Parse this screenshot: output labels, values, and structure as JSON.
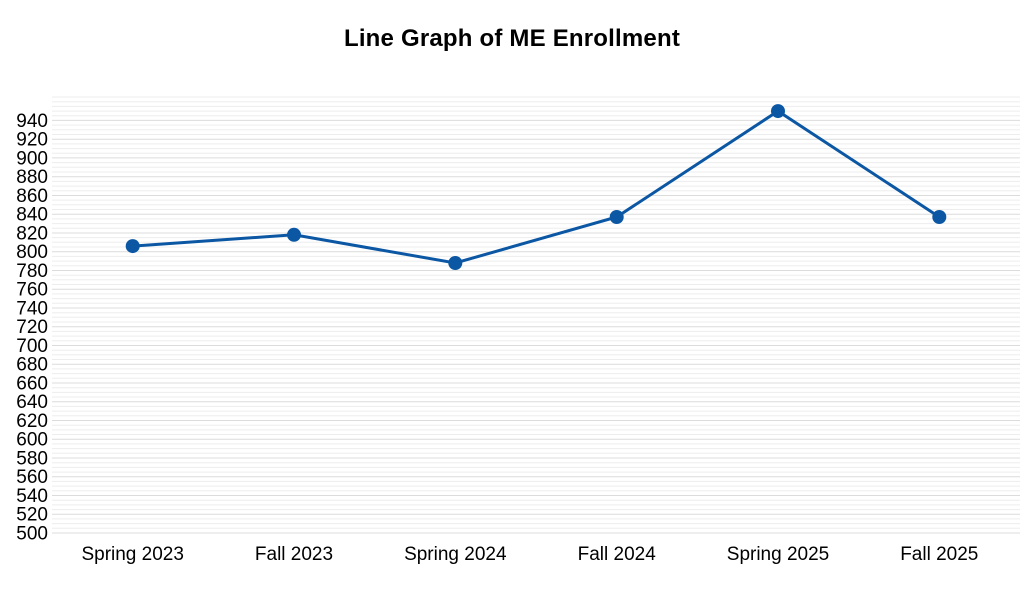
{
  "title": "Line Graph of ME Enrollment",
  "chart_data": {
    "type": "line",
    "title": "Line Graph of ME Enrollment",
    "categories": [
      "Spring 2023",
      "Fall 2023",
      "Spring 2024",
      "Fall 2024",
      "Spring 2025",
      "Fall 2025"
    ],
    "values": [
      806,
      818,
      788,
      837,
      950,
      837
    ],
    "xlabel": "",
    "ylabel": "",
    "y_tick_labels": [
      "940",
      "920",
      "900",
      "880",
      "860",
      "840",
      "820",
      "800",
      "780",
      "760",
      "740",
      "720",
      "700",
      "680",
      "660",
      "640",
      "620",
      "600",
      "580",
      "560",
      "540",
      "520",
      "500"
    ],
    "y_axis": {
      "min": 500,
      "max_tick": 940,
      "tick_step": 20,
      "minor_step": 5,
      "plot_top_value": 965
    },
    "grid": "horizontal-only",
    "legend": "none",
    "colors": {
      "line": "#0b57a4",
      "marker": "#0b57a4",
      "grid_minor": "#ededed",
      "grid_major": "#dcdcdc",
      "tick_label": "#000000",
      "title": "#000000",
      "background": "#ffffff"
    },
    "marker": {
      "shape": "circle",
      "radius": 7
    },
    "line_width": 3
  }
}
